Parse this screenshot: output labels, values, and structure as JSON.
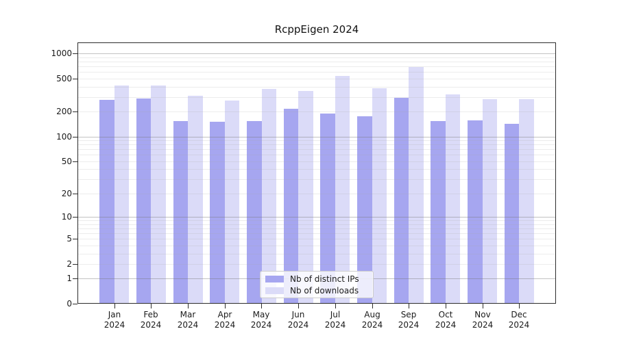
{
  "title": "RcppEigen 2024",
  "chart_data": {
    "type": "bar",
    "title": "RcppEigen 2024",
    "categories": [
      "Jan",
      "Feb",
      "Mar",
      "Apr",
      "May",
      "Jun",
      "Jul",
      "Aug",
      "Sep",
      "Oct",
      "Nov",
      "Dec"
    ],
    "category_year": "2024",
    "series": [
      {
        "name": "Nb of distinct IPs",
        "color": "#a6a6f0",
        "values": [
          277,
          286,
          154,
          151,
          155,
          215,
          190,
          176,
          291,
          153,
          156,
          142
        ]
      },
      {
        "name": "Nb of downloads",
        "color": "#dbdbf8",
        "values": [
          414,
          414,
          310,
          272,
          375,
          356,
          540,
          382,
          685,
          324,
          280,
          282
        ]
      }
    ],
    "y_axis": {
      "scale": "log1p",
      "max": 1356,
      "tick_values": [
        0,
        1,
        2,
        5,
        10,
        20,
        50,
        100,
        200,
        500,
        1000
      ],
      "tick_labels": [
        "0",
        "1",
        "2",
        "5",
        "10",
        "20",
        "50",
        "100",
        "200",
        "500",
        "1000"
      ],
      "major_gridlines": [
        1,
        10,
        100,
        1000
      ],
      "minor_gridlines": [
        2,
        3,
        4,
        5,
        6,
        7,
        8,
        9,
        20,
        30,
        40,
        50,
        60,
        70,
        80,
        90,
        200,
        300,
        400,
        500,
        600,
        700,
        800,
        900
      ]
    },
    "xlabel": "",
    "ylabel": "",
    "legend_position": "bottom-center",
    "grid": "on"
  }
}
